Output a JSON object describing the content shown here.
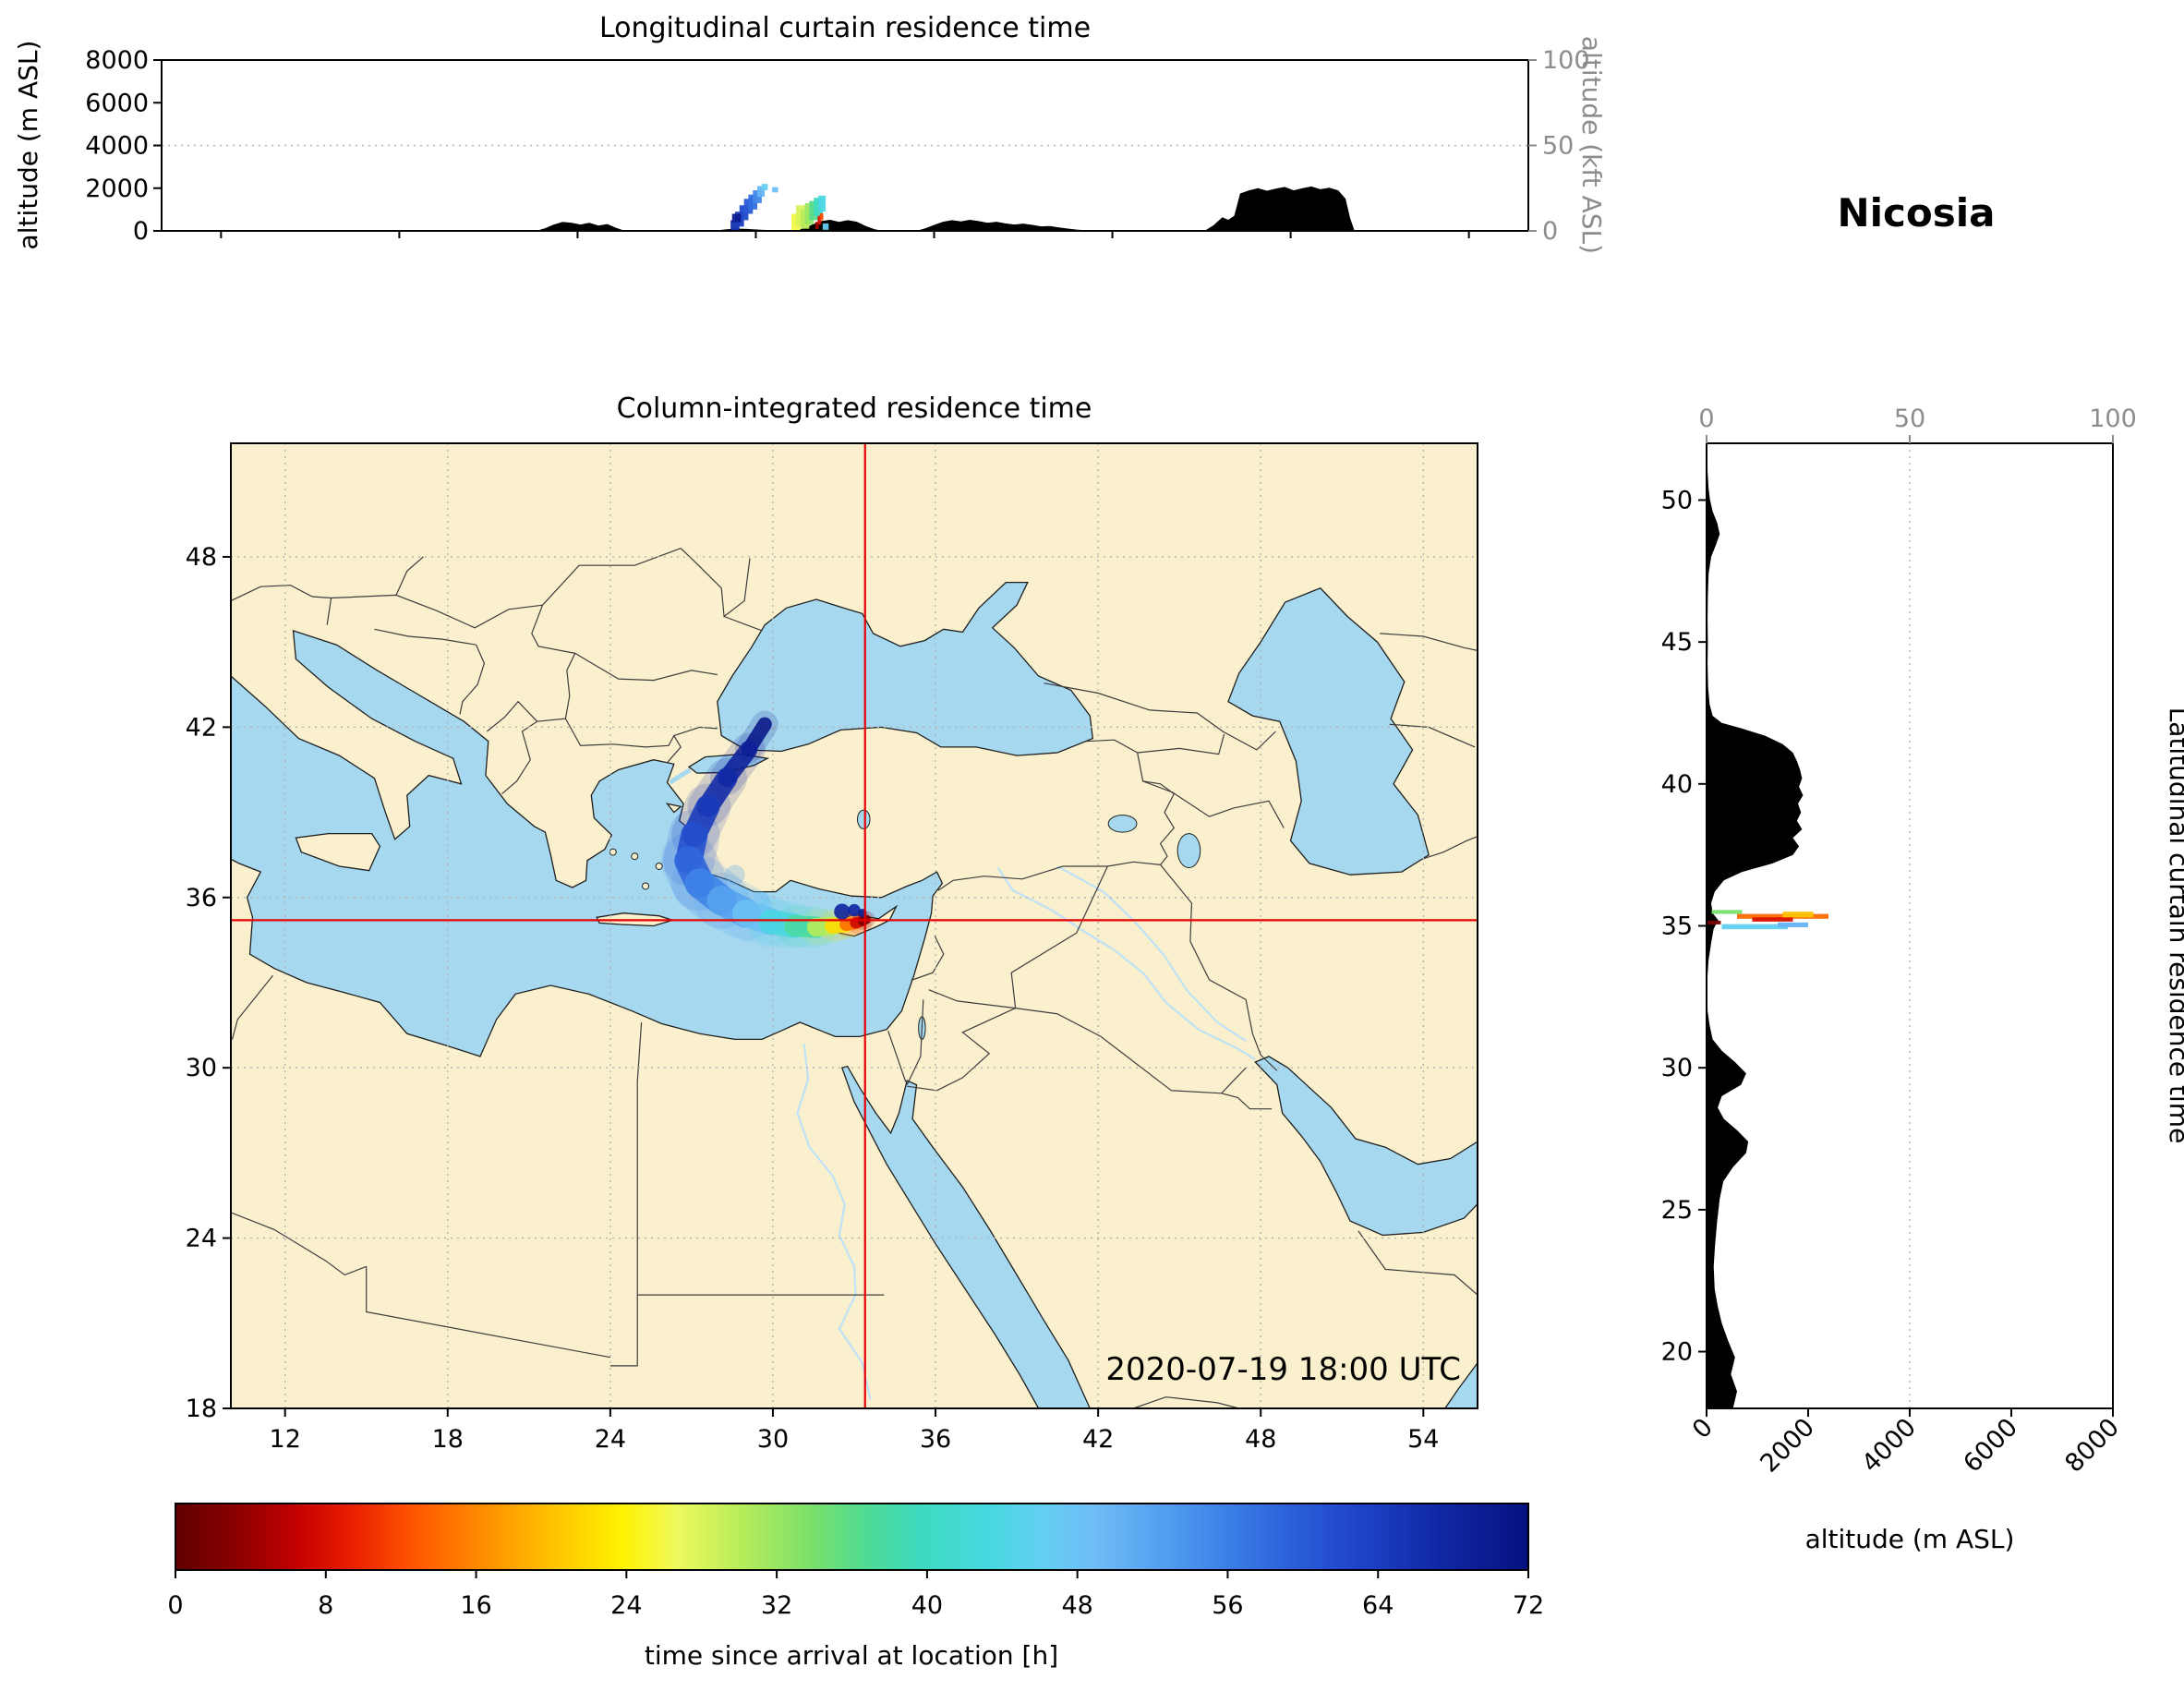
{
  "header": {
    "title": "Nicosia"
  },
  "colors": {
    "background": "#ffffff",
    "land": "#faf0cd",
    "sea": "#a6d8f0",
    "river": "#bfe2f6",
    "coastline": "#1f1f1f",
    "border": "#3d3d3d",
    "graticule": "#b3b3b3",
    "terrain": "#000000",
    "crosshair": "#e60000",
    "secondary_axis": "#8c8c8c",
    "frame": "#000000"
  },
  "chart_data": [
    {
      "id": "longitudinal_curtain",
      "type": "heatmap",
      "title": "Longitudinal curtain residence time",
      "ylabel": "altitude (m ASL)",
      "y2label": "altitude (kft ASL)",
      "xlim": [
        10,
        56
      ],
      "ylim": [
        0,
        8000
      ],
      "y2lim": [
        0,
        100
      ],
      "yticks": [
        0,
        2000,
        4000,
        6000,
        8000
      ],
      "y2ticks": [
        0,
        50,
        100
      ],
      "grid": "dotted",
      "terrain_profile": {
        "columns": [
          "lon_deg",
          "elev_m"
        ],
        "points": [
          [
            10,
            0
          ],
          [
            22.6,
            0
          ],
          [
            22.9,
            120
          ],
          [
            23.2,
            300
          ],
          [
            23.5,
            420
          ],
          [
            23.8,
            380
          ],
          [
            24.1,
            300
          ],
          [
            24.4,
            380
          ],
          [
            24.7,
            250
          ],
          [
            25,
            320
          ],
          [
            25.3,
            140
          ],
          [
            25.6,
            0
          ],
          [
            28.6,
            0
          ],
          [
            28.9,
            60
          ],
          [
            29.3,
            110
          ],
          [
            29.7,
            90
          ],
          [
            30.1,
            60
          ],
          [
            30.5,
            30
          ],
          [
            30.9,
            0
          ],
          [
            31.3,
            0
          ],
          [
            31.6,
            120
          ],
          [
            31.9,
            300
          ],
          [
            32.2,
            460
          ],
          [
            32.5,
            520
          ],
          [
            32.8,
            420
          ],
          [
            33.1,
            500
          ],
          [
            33.4,
            430
          ],
          [
            33.7,
            230
          ],
          [
            34,
            80
          ],
          [
            34.3,
            0
          ],
          [
            35.4,
            0
          ],
          [
            35.7,
            120
          ],
          [
            36,
            280
          ],
          [
            36.3,
            430
          ],
          [
            36.6,
            500
          ],
          [
            36.9,
            440
          ],
          [
            37.2,
            520
          ],
          [
            37.5,
            460
          ],
          [
            37.8,
            380
          ],
          [
            38.1,
            430
          ],
          [
            38.4,
            350
          ],
          [
            38.7,
            300
          ],
          [
            39,
            340
          ],
          [
            39.3,
            280
          ],
          [
            39.6,
            210
          ],
          [
            39.9,
            230
          ],
          [
            40.2,
            160
          ],
          [
            40.5,
            110
          ],
          [
            40.8,
            60
          ],
          [
            41.1,
            30
          ],
          [
            41.4,
            0
          ],
          [
            45.1,
            0
          ],
          [
            45.4,
            260
          ],
          [
            45.7,
            640
          ],
          [
            45.9,
            520
          ],
          [
            46.1,
            700
          ],
          [
            46.3,
            1750
          ],
          [
            46.6,
            1900
          ],
          [
            46.9,
            2000
          ],
          [
            47.2,
            1880
          ],
          [
            47.5,
            1980
          ],
          [
            47.8,
            2060
          ],
          [
            48.1,
            1900
          ],
          [
            48.4,
            2000
          ],
          [
            48.7,
            2080
          ],
          [
            49,
            1950
          ],
          [
            49.3,
            2020
          ],
          [
            49.6,
            1900
          ],
          [
            49.85,
            1500
          ],
          [
            50,
            600
          ],
          [
            50.15,
            0
          ],
          [
            56,
            0
          ]
        ]
      },
      "plume_cells": {
        "columns": [
          "lon0",
          "lon1",
          "alt0_m",
          "alt1_m",
          "t_h"
        ],
        "cells": [
          [
            29.15,
            29.45,
            0,
            500,
            66
          ],
          [
            29.3,
            29.6,
            200,
            900,
            64
          ],
          [
            29.45,
            29.75,
            500,
            1200,
            62
          ],
          [
            29.6,
            29.9,
            800,
            1500,
            60
          ],
          [
            29.75,
            30.05,
            1000,
            1700,
            58
          ],
          [
            29.9,
            30.2,
            1300,
            1900,
            55
          ],
          [
            30.05,
            30.3,
            1600,
            2100,
            50
          ],
          [
            30.2,
            30.4,
            1900,
            2200,
            46
          ],
          [
            29.2,
            29.5,
            400,
            800,
            70
          ],
          [
            30.55,
            30.75,
            1800,
            2050,
            48
          ],
          [
            31.2,
            31.5,
            0,
            800,
            26
          ],
          [
            31.35,
            31.65,
            200,
            1200,
            28
          ],
          [
            31.5,
            31.8,
            100,
            1000,
            30
          ],
          [
            31.65,
            31.95,
            300,
            1300,
            32
          ],
          [
            31.8,
            32.1,
            500,
            1400,
            36
          ],
          [
            31.95,
            32.25,
            700,
            1550,
            40
          ],
          [
            32.1,
            32.35,
            900,
            1650,
            44
          ],
          [
            32.25,
            32.45,
            50,
            350,
            46
          ],
          [
            32,
            32.12,
            80,
            420,
            4
          ],
          [
            32.08,
            32.2,
            300,
            700,
            8
          ],
          [
            32.15,
            32.27,
            500,
            820,
            12
          ]
        ]
      }
    },
    {
      "id": "column_integrated_map",
      "type": "map",
      "title": "Column-integrated residence time",
      "timestamp": "2020-07-19 18:00 UTC",
      "xlim": [
        10,
        56
      ],
      "ylim": [
        18,
        52
      ],
      "xticks": [
        12,
        18,
        24,
        30,
        36,
        42,
        48,
        54
      ],
      "yticks": [
        18,
        24,
        30,
        36,
        42,
        48
      ],
      "grid": "dotted",
      "crosshair": {
        "lon": 33.4,
        "lat": 35.2
      },
      "plume_track": {
        "columns": [
          "lon_deg",
          "lat_deg",
          "t_h",
          "width_deg"
        ],
        "points": [
          [
            29.7,
            42.1,
            72,
            0.45
          ],
          [
            29.1,
            41.2,
            70,
            0.55
          ],
          [
            28.3,
            40.2,
            68,
            0.7
          ],
          [
            27.6,
            39.2,
            66,
            0.8
          ],
          [
            27.1,
            38.2,
            63,
            0.9
          ],
          [
            26.9,
            37.3,
            60,
            1.0
          ],
          [
            27.3,
            36.5,
            57,
            1.05
          ],
          [
            28.1,
            35.9,
            54,
            1.05
          ],
          [
            29,
            35.45,
            50,
            1.0
          ],
          [
            29.9,
            35.15,
            46,
            0.9
          ],
          [
            30.8,
            35,
            41,
            0.8
          ],
          [
            31.6,
            34.95,
            34,
            0.7
          ],
          [
            32.2,
            35,
            26,
            0.6
          ],
          [
            32.7,
            35.05,
            18,
            0.5
          ],
          [
            33.05,
            35.1,
            10,
            0.42
          ],
          [
            33.3,
            35.17,
            4,
            0.36
          ],
          [
            33.45,
            35.22,
            0,
            0.3
          ]
        ]
      },
      "plume_blobs": {
        "columns": [
          "lon_deg",
          "lat_deg",
          "radius_deg",
          "t_h",
          "opacity"
        ],
        "points": [
          [
            32.55,
            35.5,
            0.28,
            68,
            0.9
          ],
          [
            33,
            35.55,
            0.22,
            68,
            0.9
          ],
          [
            33.3,
            35.45,
            0.15,
            70,
            0.9
          ],
          [
            28.6,
            36.8,
            0.35,
            52,
            0.3
          ],
          [
            29.6,
            35.9,
            0.3,
            48,
            0.3
          ]
        ]
      }
    },
    {
      "id": "latitudinal_curtain",
      "type": "heatmap",
      "right_label": "Latitudinal curtain residence time",
      "xlabel": "altitude (m ASL)",
      "xlim": [
        0,
        8000
      ],
      "x2lim": [
        0,
        100
      ],
      "ylim": [
        18,
        52
      ],
      "xticks": [
        0,
        2000,
        4000,
        6000,
        8000
      ],
      "x2ticks": [
        0,
        50,
        100
      ],
      "yticks": [
        20,
        25,
        30,
        35,
        40,
        45,
        50
      ],
      "grid": "dotted",
      "terrain_profile": {
        "columns": [
          "lat_deg",
          "elev_m"
        ],
        "points": [
          [
            18,
            520
          ],
          [
            18.6,
            600
          ],
          [
            19.2,
            480
          ],
          [
            19.8,
            560
          ],
          [
            20.4,
            420
          ],
          [
            21,
            300
          ],
          [
            21.6,
            220
          ],
          [
            22.2,
            160
          ],
          [
            23,
            140
          ],
          [
            23.8,
            170
          ],
          [
            24.6,
            210
          ],
          [
            25.4,
            260
          ],
          [
            26,
            330
          ],
          [
            26.5,
            520
          ],
          [
            27,
            780
          ],
          [
            27.4,
            820
          ],
          [
            27.8,
            600
          ],
          [
            28.2,
            340
          ],
          [
            28.6,
            220
          ],
          [
            29,
            300
          ],
          [
            29.4,
            680
          ],
          [
            29.8,
            780
          ],
          [
            30.2,
            560
          ],
          [
            30.6,
            300
          ],
          [
            31,
            120
          ],
          [
            31.5,
            60
          ],
          [
            32,
            20
          ],
          [
            33,
            10
          ],
          [
            33.8,
            40
          ],
          [
            34.4,
            90
          ],
          [
            34.9,
            140
          ],
          [
            35.2,
            230
          ],
          [
            35.45,
            120
          ],
          [
            35.8,
            90
          ],
          [
            36.2,
            160
          ],
          [
            36.6,
            340
          ],
          [
            36.9,
            700
          ],
          [
            37.2,
            1300
          ],
          [
            37.5,
            1700
          ],
          [
            37.8,
            1820
          ],
          [
            38.1,
            1700
          ],
          [
            38.4,
            1880
          ],
          [
            38.7,
            1780
          ],
          [
            39,
            1860
          ],
          [
            39.3,
            1800
          ],
          [
            39.6,
            1900
          ],
          [
            39.9,
            1820
          ],
          [
            40.2,
            1880
          ],
          [
            40.5,
            1840
          ],
          [
            40.8,
            1780
          ],
          [
            41.1,
            1700
          ],
          [
            41.4,
            1500
          ],
          [
            41.7,
            1150
          ],
          [
            41.95,
            700
          ],
          [
            42.15,
            300
          ],
          [
            42.4,
            120
          ],
          [
            42.8,
            60
          ],
          [
            43.4,
            30
          ],
          [
            44.2,
            20
          ],
          [
            45,
            25
          ],
          [
            45.8,
            20
          ],
          [
            46.6,
            25
          ],
          [
            47.4,
            40
          ],
          [
            48,
            90
          ],
          [
            48.4,
            180
          ],
          [
            48.8,
            260
          ],
          [
            49.2,
            210
          ],
          [
            49.6,
            120
          ],
          [
            50,
            70
          ],
          [
            50.4,
            40
          ],
          [
            51,
            20
          ],
          [
            51.6,
            10
          ],
          [
            52,
            10
          ]
        ]
      },
      "plume_cells": {
        "columns": [
          "lat0",
          "lat1",
          "alt0_m",
          "alt1_m",
          "t_h"
        ],
        "cells": [
          [
            35.25,
            35.42,
            600,
            2400,
            14
          ],
          [
            35.15,
            35.3,
            900,
            1700,
            8
          ],
          [
            35.3,
            35.5,
            1500,
            2100,
            20
          ],
          [
            35.42,
            35.56,
            100,
            700,
            34
          ],
          [
            34.88,
            35.06,
            300,
            1600,
            46
          ],
          [
            34.95,
            35.12,
            1400,
            2000,
            50
          ],
          [
            35.05,
            35.18,
            0,
            280,
            2
          ]
        ]
      }
    },
    {
      "id": "time_colorbar",
      "type": "colorbar",
      "label": "time since arrival at location [h]",
      "range": [
        0,
        72
      ],
      "ticks": [
        0,
        8,
        16,
        24,
        32,
        40,
        48,
        56,
        64,
        72
      ],
      "stops": [
        [
          0,
          "#600000"
        ],
        [
          0.045,
          "#8b0000"
        ],
        [
          0.09,
          "#c40000"
        ],
        [
          0.13,
          "#ea1e00"
        ],
        [
          0.18,
          "#ff5a00"
        ],
        [
          0.23,
          "#ff9000"
        ],
        [
          0.28,
          "#ffc400"
        ],
        [
          0.33,
          "#fff200"
        ],
        [
          0.37,
          "#eef95c"
        ],
        [
          0.42,
          "#b5ec5a"
        ],
        [
          0.47,
          "#7ae06a"
        ],
        [
          0.51,
          "#4fdb94"
        ],
        [
          0.55,
          "#3edabf"
        ],
        [
          0.6,
          "#46d8e0"
        ],
        [
          0.64,
          "#63cff2"
        ],
        [
          0.68,
          "#6fbcf6"
        ],
        [
          0.73,
          "#539ff0"
        ],
        [
          0.78,
          "#3a7ee6"
        ],
        [
          0.83,
          "#2a5cd8"
        ],
        [
          0.88,
          "#1d41c4"
        ],
        [
          0.93,
          "#112aa8"
        ],
        [
          1,
          "#071180"
        ]
      ]
    }
  ]
}
